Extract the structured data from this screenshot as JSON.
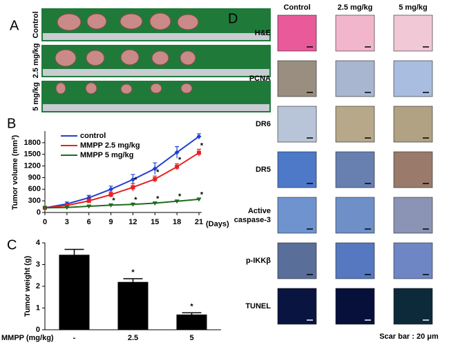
{
  "panels": {
    "a": {
      "label": "A",
      "rows": [
        "Control",
        "2.5 mg/kg",
        "5 mg/kg"
      ]
    },
    "b": {
      "label": "B"
    },
    "c": {
      "label": "C"
    },
    "d": {
      "label": "D",
      "columns": [
        "Control",
        "2.5 mg/kg",
        "5 mg/kg"
      ],
      "rows": [
        "H&E",
        "PCNA",
        "DR6",
        "DR5",
        "Active caspase-3",
        "p-IKKβ",
        "TUNEL"
      ],
      "scale_note": "Scar bar : 20 μm"
    }
  },
  "chart_data": [
    {
      "type": "line",
      "y_label": "Tumor volume (mm³)",
      "x_unit": "(Days)",
      "x": [
        0,
        3,
        6,
        9,
        12,
        15,
        18,
        21
      ],
      "xlim": [
        0,
        21
      ],
      "xticks": [
        0,
        3,
        6,
        9,
        12,
        15,
        18,
        21
      ],
      "ylim": [
        0,
        2100
      ],
      "yticks": [
        0,
        300,
        600,
        900,
        1200,
        1500,
        1800
      ],
      "legend": "upper-left",
      "star": "*",
      "series": [
        {
          "name": "control",
          "color": "#1f3fd0",
          "values": [
            120,
            220,
            380,
            600,
            850,
            1130,
            1550,
            1960
          ],
          "errors": [
            20,
            50,
            60,
            80,
            130,
            150,
            150,
            70
          ],
          "significance": [
            null,
            null,
            null,
            null,
            null,
            null,
            null,
            null
          ]
        },
        {
          "name": "MMPP 2.5 mg/kg",
          "color": "#e82020",
          "values": [
            120,
            180,
            300,
            460,
            650,
            860,
            1180,
            1540
          ],
          "errors": [
            20,
            40,
            50,
            70,
            100,
            80,
            80,
            90
          ],
          "significance": [
            null,
            null,
            null,
            null,
            true,
            true,
            true,
            true
          ]
        },
        {
          "name": "MMPP 5 mg/kg",
          "color": "#1e6b1e",
          "values": [
            120,
            130,
            160,
            190,
            210,
            240,
            290,
            340
          ],
          "errors": [
            10,
            20,
            20,
            20,
            20,
            20,
            30,
            20
          ],
          "significance": [
            null,
            null,
            null,
            true,
            true,
            true,
            true,
            true
          ]
        }
      ]
    },
    {
      "type": "bar",
      "y_label": "Tumor weight (g)",
      "x_label": "MMPP (mg/kg)",
      "categories": [
        "-",
        "2.5",
        "5"
      ],
      "values": [
        3.45,
        2.2,
        0.7
      ],
      "errors": [
        0.25,
        0.15,
        0.08
      ],
      "significance": [
        null,
        true,
        true
      ],
      "star": "*",
      "color": "#000000",
      "ylim": [
        0,
        4
      ],
      "yticks": [
        0,
        1,
        2,
        3,
        4
      ]
    }
  ]
}
